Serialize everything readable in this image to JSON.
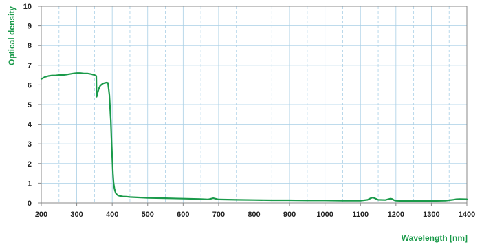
{
  "chart_data": {
    "type": "line",
    "title": "",
    "xlabel": "Wavelength [nm]",
    "ylabel": "Optical density",
    "xlim": [
      200,
      1400
    ],
    "ylim": [
      0,
      10
    ],
    "xticks": [
      200,
      300,
      400,
      500,
      600,
      700,
      800,
      900,
      1000,
      1100,
      1200,
      1300,
      1400
    ],
    "yticks": [
      0,
      1,
      2,
      3,
      4,
      5,
      6,
      7,
      8,
      9,
      10
    ],
    "grid": true,
    "colors": {
      "line": "#1a9a4a",
      "axis_title": "#1a9a4a",
      "grid": "#a9cfe6",
      "frame": "#888888"
    },
    "series": [
      {
        "x": [
          200,
          210,
          220,
          230,
          240,
          250,
          260,
          270,
          280,
          290,
          300,
          310,
          320,
          330,
          340,
          350,
          355,
          356,
          358,
          362,
          366,
          370,
          375,
          380,
          384,
          388,
          392,
          396,
          398,
          400,
          402,
          404,
          406,
          408,
          410,
          412,
          415,
          420,
          430,
          440,
          450,
          500,
          550,
          600,
          650,
          670,
          685,
          700,
          750,
          800,
          850,
          900,
          950,
          1000,
          1050,
          1100,
          1120,
          1130,
          1135,
          1140,
          1150,
          1170,
          1185,
          1190,
          1195,
          1200,
          1210,
          1250,
          1300,
          1340,
          1360,
          1370,
          1380,
          1400
        ],
        "y": [
          6.3,
          6.4,
          6.45,
          6.48,
          6.48,
          6.5,
          6.5,
          6.52,
          6.55,
          6.58,
          6.6,
          6.6,
          6.58,
          6.58,
          6.55,
          6.5,
          6.45,
          5.4,
          5.55,
          5.8,
          5.95,
          6.02,
          6.08,
          6.1,
          6.12,
          6.1,
          5.5,
          4.2,
          3.2,
          2.3,
          1.5,
          1.0,
          0.75,
          0.6,
          0.5,
          0.45,
          0.4,
          0.36,
          0.33,
          0.32,
          0.3,
          0.26,
          0.24,
          0.22,
          0.2,
          0.18,
          0.24,
          0.18,
          0.16,
          0.15,
          0.14,
          0.14,
          0.13,
          0.13,
          0.12,
          0.12,
          0.16,
          0.25,
          0.28,
          0.24,
          0.16,
          0.15,
          0.22,
          0.2,
          0.14,
          0.12,
          0.11,
          0.1,
          0.1,
          0.12,
          0.16,
          0.19,
          0.2,
          0.19
        ]
      }
    ]
  }
}
